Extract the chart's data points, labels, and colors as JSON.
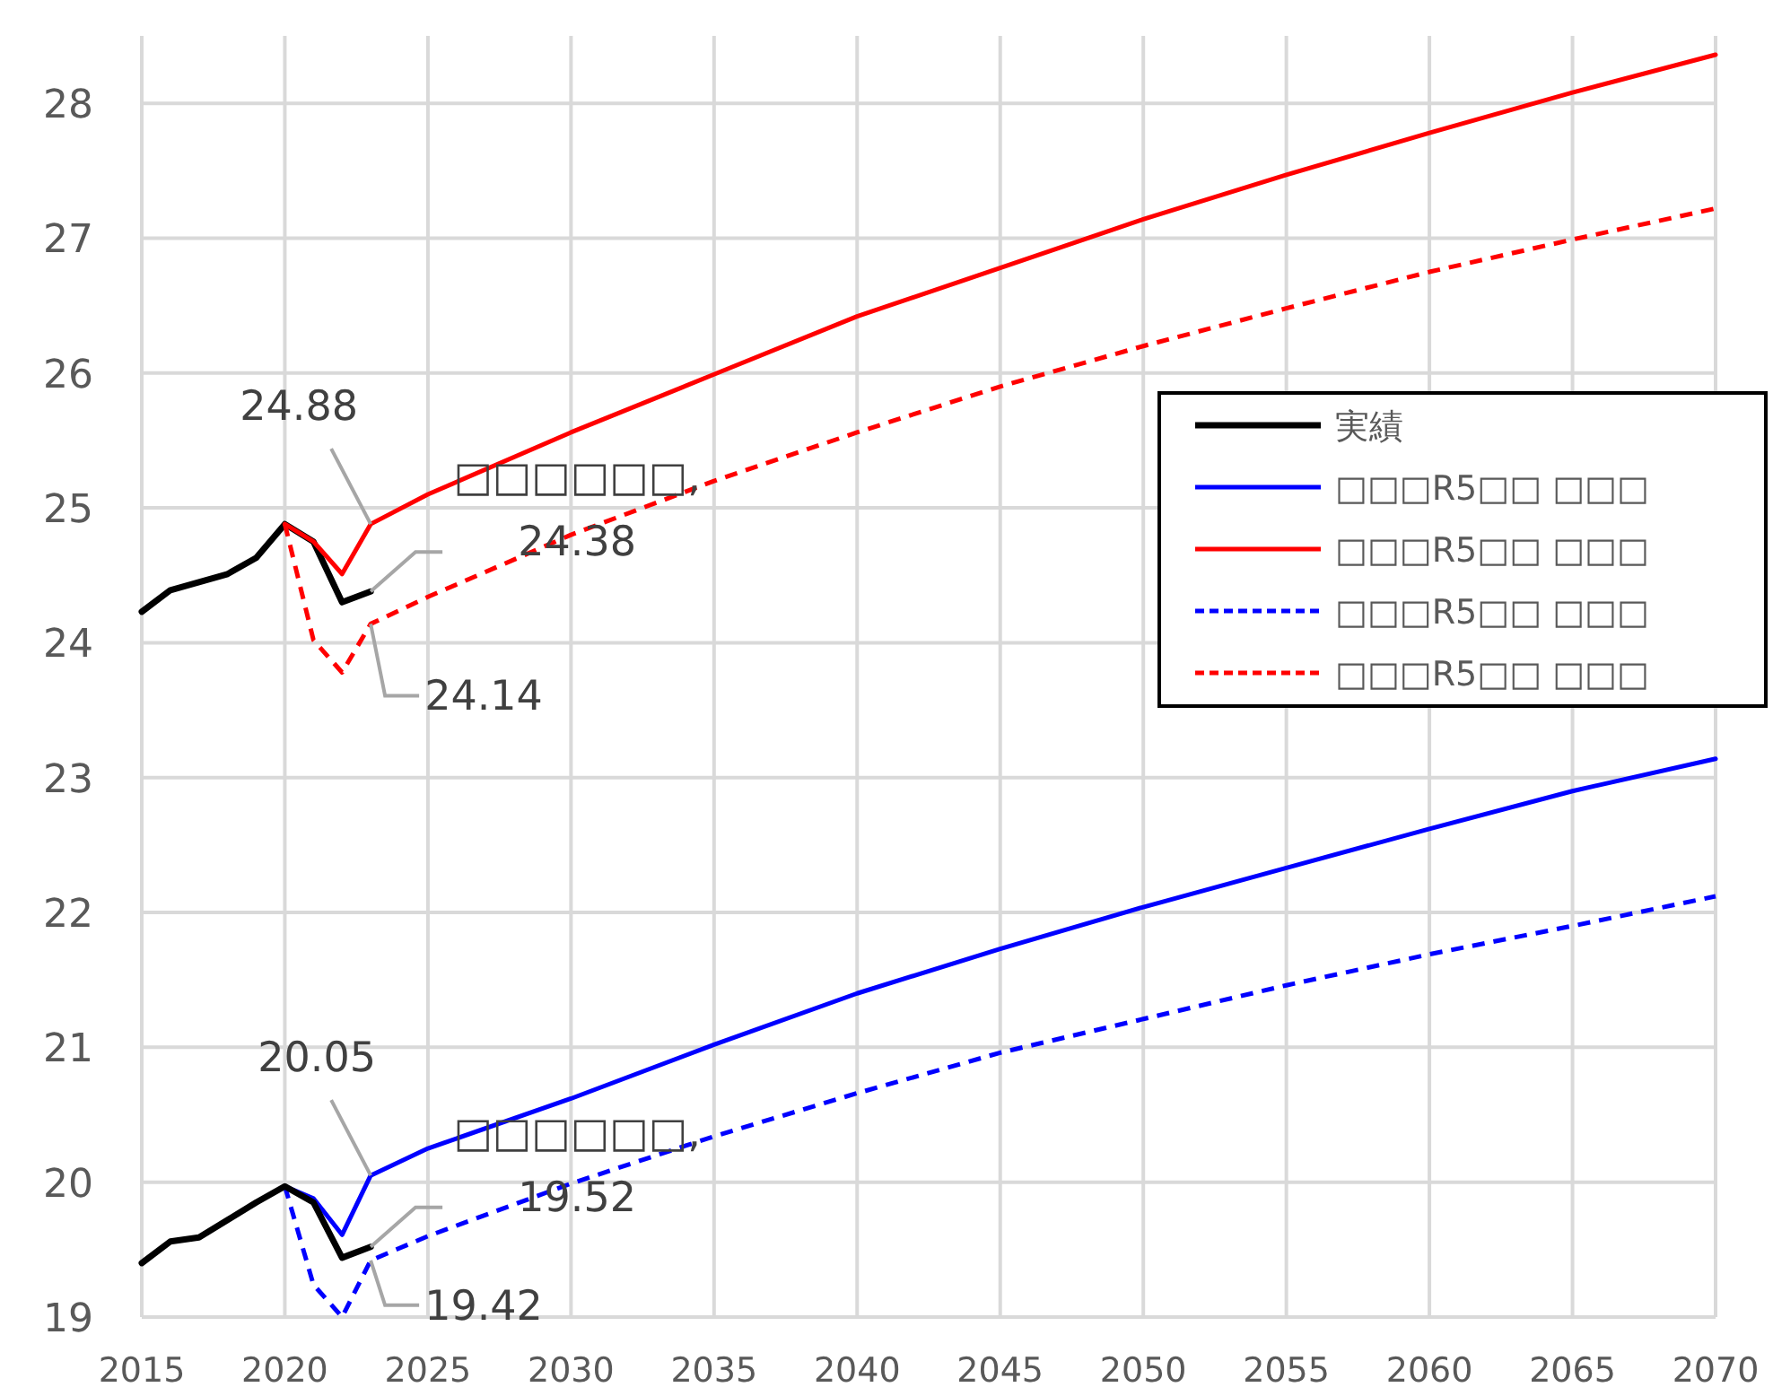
{
  "chart_data": {
    "type": "line",
    "xlim": [
      2015,
      2070
    ],
    "ylim": [
      19,
      28.5
    ],
    "xticks": [
      2015,
      2020,
      2025,
      2030,
      2035,
      2040,
      2045,
      2050,
      2055,
      2060,
      2065,
      2070
    ],
    "yticks": [
      19,
      20,
      21,
      22,
      23,
      24,
      25,
      26,
      27,
      28
    ],
    "grid": true,
    "legend": "right",
    "marker": "none",
    "series": [
      {
        "name": "実績",
        "color": "#000000",
        "line_style": "solid",
        "x": [
          2015,
          2016,
          2017,
          2018,
          2019,
          2020,
          2021,
          2022,
          2023
        ],
        "values": [
          24.23,
          24.39,
          24.45,
          24.51,
          24.63,
          24.88,
          24.75,
          24.3,
          24.38
        ],
        "value_labels": [
          null,
          null,
          null,
          null,
          null,
          null,
          null,
          null,
          "□□□□□□, 24.38"
        ]
      },
      {
        "name": "□□□R5□□ □□□",
        "color": "#0000ff",
        "line_style": "solid",
        "x": [
          2020,
          2021,
          2022,
          2023,
          2025,
          2030,
          2035,
          2040,
          2045,
          2050,
          2055,
          2060,
          2065,
          2070
        ],
        "values": [
          19.97,
          19.88,
          19.61,
          20.05,
          20.25,
          20.62,
          21.02,
          21.4,
          21.73,
          22.04,
          22.33,
          22.62,
          22.9,
          23.14
        ],
        "value_labels": [
          null,
          null,
          null,
          "20.05",
          null,
          null,
          null,
          null,
          null,
          null,
          null,
          null,
          null,
          null
        ]
      },
      {
        "name": "□□□R5□□ □□□",
        "color": "#ff0000",
        "line_style": "solid",
        "x": [
          2020,
          2021,
          2022,
          2023,
          2025,
          2030,
          2035,
          2040,
          2045,
          2050,
          2055,
          2060,
          2065,
          2070
        ],
        "values": [
          24.88,
          24.75,
          24.51,
          24.88,
          25.1,
          25.56,
          25.99,
          26.42,
          26.78,
          27.14,
          27.47,
          27.78,
          28.08,
          28.36
        ],
        "value_labels": [
          null,
          null,
          null,
          "24.88",
          null,
          null,
          null,
          null,
          null,
          null,
          null,
          null,
          null,
          null
        ]
      },
      {
        "name": "□□□R5□□ □□□",
        "color": "#0000ff",
        "line_style": "dashed",
        "x": [
          2020,
          2021,
          2022,
          2023,
          2025,
          2030,
          2035,
          2040,
          2045,
          2050,
          2055,
          2060,
          2065,
          2070
        ],
        "values": [
          19.97,
          19.24,
          19.0,
          19.42,
          19.6,
          19.99,
          20.34,
          20.66,
          20.96,
          21.21,
          21.46,
          21.69,
          21.9,
          22.12
        ],
        "value_labels": [
          null,
          null,
          null,
          "19.42",
          null,
          null,
          null,
          null,
          null,
          null,
          null,
          null,
          null,
          null
        ]
      },
      {
        "name": "□□□R5□□ □□□",
        "color": "#ff0000",
        "line_style": "dashed",
        "x": [
          2020,
          2021,
          2022,
          2023,
          2025,
          2030,
          2035,
          2040,
          2045,
          2050,
          2055,
          2060,
          2065,
          2070
        ],
        "values": [
          24.88,
          24.02,
          23.78,
          24.14,
          24.34,
          24.8,
          25.2,
          25.56,
          25.9,
          26.2,
          26.48,
          26.75,
          26.99,
          27.22
        ],
        "value_labels": [
          null,
          null,
          null,
          "24.14",
          null,
          null,
          null,
          null,
          null,
          null,
          null,
          null,
          null,
          null
        ]
      },
      {
        "color": "#000000",
        "line_style": "solid",
        "x": [
          2015,
          2016,
          2017,
          2018,
          2019,
          2020,
          2021,
          2022,
          2023
        ],
        "values": [
          19.4,
          19.56,
          19.59,
          19.72,
          19.85,
          19.97,
          19.85,
          19.44,
          19.52
        ],
        "value_labels": [
          null,
          null,
          null,
          null,
          null,
          null,
          null,
          null,
          "□□□□□□, 19.52"
        ]
      }
    ]
  }
}
